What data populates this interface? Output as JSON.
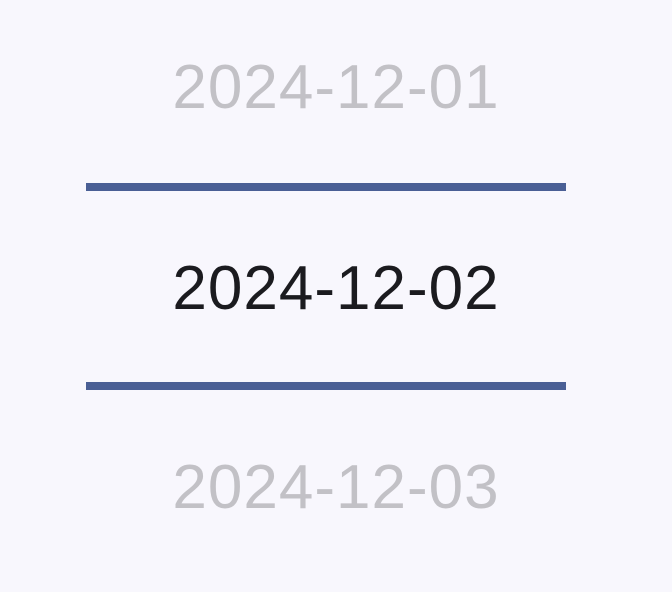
{
  "date_picker": {
    "items": [
      {
        "label": "2024-12-01",
        "state": "previous"
      },
      {
        "label": "2024-12-02",
        "state": "selected"
      },
      {
        "label": "2024-12-03",
        "state": "next"
      }
    ],
    "colors": {
      "background": "#f8f7fd",
      "selected_text": "#1b1b1f",
      "unselected_text": "#c2c1c6",
      "divider": "#4a5f95"
    }
  }
}
